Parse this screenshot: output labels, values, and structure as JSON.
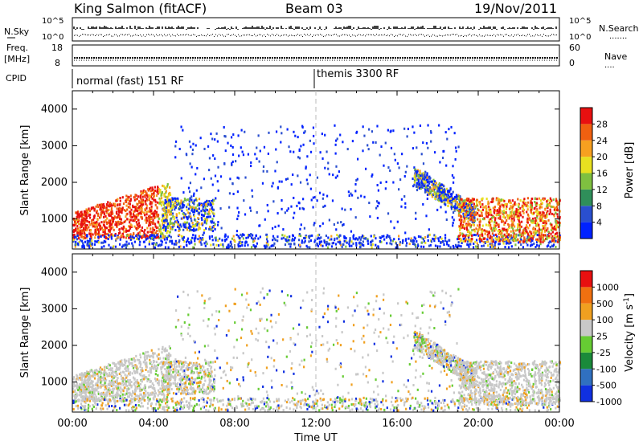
{
  "header": {
    "title": "King Salmon (fitACF)",
    "beam": "Beam 03",
    "date": "19/Nov/2011"
  },
  "summary_panels": {
    "nsky_label": "N.Sky",
    "nsearch_label": "N.Search",
    "nsky_ticks": [
      "10^5",
      "10^0"
    ],
    "nsearch_ticks": [
      "10^5",
      "10^0"
    ],
    "freq_label_1": "Freq.",
    "freq_label_2": "[MHz]",
    "freq_ticks": [
      "18",
      "8"
    ],
    "nave_label": "Nave",
    "nave_ticks": [
      "60",
      "0"
    ],
    "cpid_label": "CPID",
    "cpid_modes": [
      {
        "label": "normal (fast) 151 RF",
        "start_hour": 0
      },
      {
        "label": "themis 3300 RF",
        "start_hour": 12
      }
    ]
  },
  "chart_data": [
    {
      "type": "heatmap",
      "name": "Power",
      "ylabel": "Slant Range [km]",
      "xlabel": "Time UT",
      "x_range_hours": [
        0,
        24
      ],
      "x_ticks": [
        "00:00",
        "04:00",
        "08:00",
        "12:00",
        "16:00",
        "20:00",
        "00:00"
      ],
      "ylim": [
        180,
        4500
      ],
      "y_ticks": [
        1000,
        2000,
        3000,
        4000
      ],
      "colorbar_label": "Power [dB]",
      "colorbar_ticks": [
        "28",
        "24",
        "20",
        "16",
        "12",
        "8",
        "4"
      ],
      "colorbar_colors": [
        "#0022ff",
        "#2a4fcf",
        "#2f8f5a",
        "#7fc040",
        "#e8e020",
        "#f7a020",
        "#f06010",
        "#e81010"
      ]
    },
    {
      "type": "heatmap",
      "name": "Velocity",
      "ylabel": "Slant Range [km]",
      "xlabel": "Time UT",
      "x_range_hours": [
        0,
        24
      ],
      "x_ticks": [
        "00:00",
        "04:00",
        "08:00",
        "12:00",
        "16:00",
        "20:00",
        "00:00"
      ],
      "ylim": [
        180,
        4500
      ],
      "y_ticks": [
        1000,
        2000,
        3000,
        4000
      ],
      "colorbar_label": "Velocity [m s",
      "colorbar_label_sup": "-1",
      "colorbar_label_end": "]",
      "colorbar_ticks": [
        "1000",
        "500",
        "100",
        "25",
        "-25",
        "-100",
        "-500",
        "-1000"
      ],
      "colorbar_colors": [
        "#1030e0",
        "#3070c0",
        "#1a8a3a",
        "#66cc33",
        "#c8c8c8",
        "#f0a020",
        "#f07010",
        "#e81010"
      ]
    }
  ]
}
